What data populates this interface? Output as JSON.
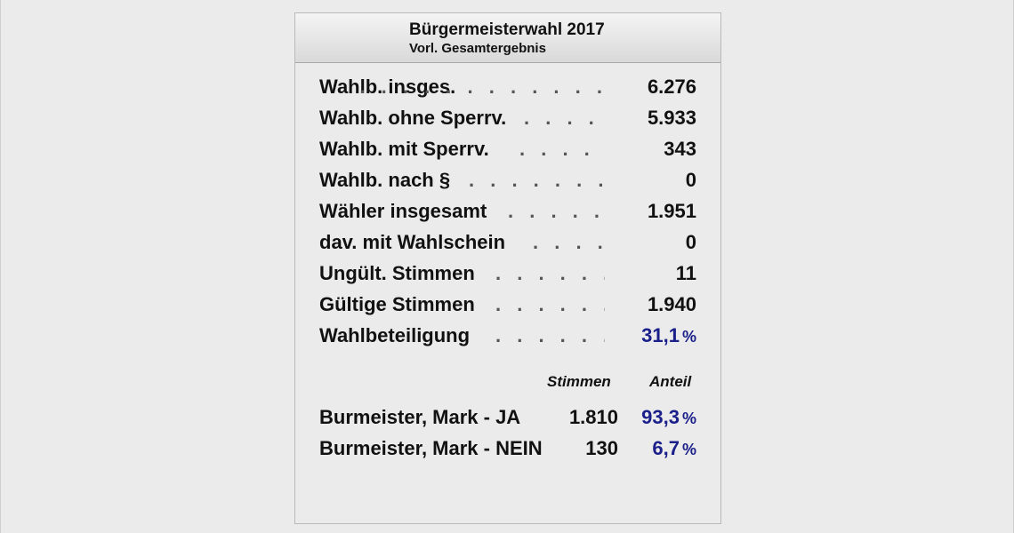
{
  "header": {
    "title": "Bürgermeisterwahl 2017",
    "subtitle": "Vorl. Gesamtergebnis"
  },
  "leader_dots": ". . . . . . . . . . . .",
  "stats": [
    {
      "label": "Wahlb. insges.",
      "value": "6.276"
    },
    {
      "label": "Wahlb. ohne Sperrv.",
      "value": "5.933"
    },
    {
      "label": "Wahlb. mit Sperrv.",
      "value": "343"
    },
    {
      "label": "Wahlb. nach §",
      "value": "0"
    },
    {
      "label": "Wähler insgesamt",
      "value": "1.951"
    },
    {
      "label": "dav. mit Wahlschein",
      "value": "0"
    },
    {
      "label": "Ungült. Stimmen",
      "value": "11"
    },
    {
      "label": "Gültige Stimmen",
      "value": "1.940"
    },
    {
      "label": "Wahlbeteiligung",
      "value": "31,1",
      "unit": "%"
    }
  ],
  "results": {
    "col_votes": "Stimmen",
    "col_share": "Anteil",
    "rows": [
      {
        "name": "Burmeister, Mark - JA",
        "votes": "1.810",
        "share": "93,3",
        "unit": "%"
      },
      {
        "name": "Burmeister, Mark - NEIN",
        "votes": "130",
        "share": "6,7",
        "unit": "%"
      }
    ]
  },
  "colors": {
    "background": "#ebebeb",
    "text": "#111111",
    "percent_blue": "#1a1f8a"
  }
}
